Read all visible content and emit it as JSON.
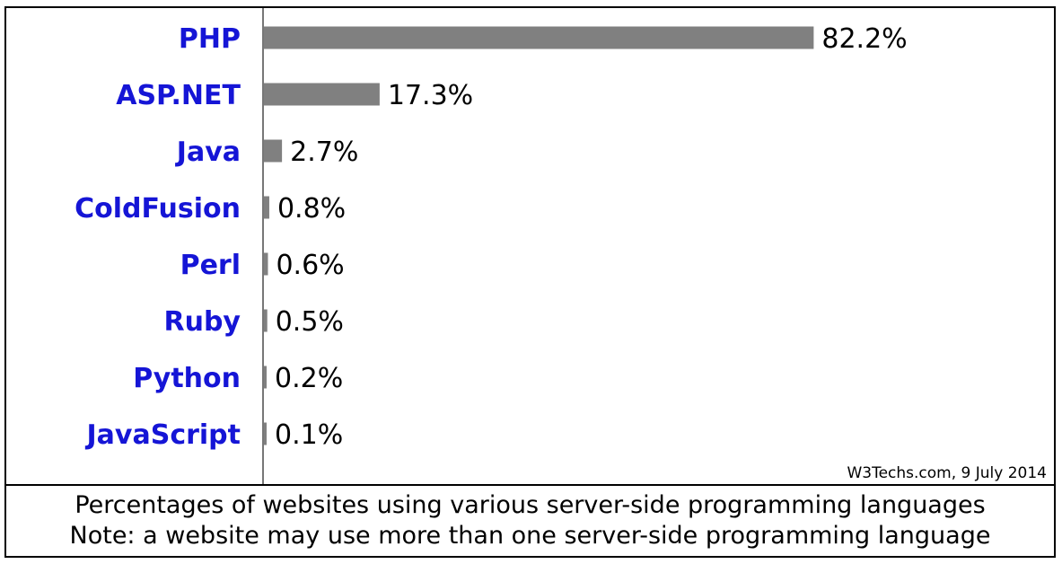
{
  "chart_data": {
    "type": "bar",
    "orientation": "horizontal",
    "categories": [
      "PHP",
      "ASP.NET",
      "Java",
      "ColdFusion",
      "Perl",
      "Ruby",
      "Python",
      "JavaScript"
    ],
    "values": [
      82.2,
      17.3,
      2.7,
      0.8,
      0.6,
      0.5,
      0.2,
      0.1
    ],
    "value_labels": [
      "82.2%",
      "17.3%",
      "2.7%",
      "0.8%",
      "0.6%",
      "0.5%",
      "0.2%",
      "0.1%"
    ],
    "unit": "%",
    "title": "",
    "xlabel": "",
    "ylabel": "",
    "xlim": [
      0,
      100
    ],
    "grid": false,
    "legend": "none",
    "bar_color": "#808080",
    "label_color": "#1515d6"
  },
  "credit": "W3Techs.com, 9 July 2014",
  "caption": {
    "line1": "Percentages of websites using various server-side programming languages",
    "line2": "Note: a website may use more than one server-side programming language"
  }
}
